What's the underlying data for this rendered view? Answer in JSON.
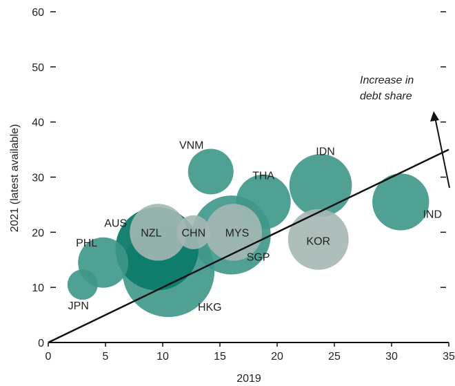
{
  "chart_data": {
    "type": "scatter",
    "title": "",
    "xlabel": "2019",
    "ylabel": "2021 (latest available)",
    "xlim": [
      0,
      35
    ],
    "ylim": [
      0,
      60
    ],
    "xticks": [
      0,
      5,
      10,
      15,
      20,
      25,
      30,
      35
    ],
    "yticks": [
      0,
      10,
      20,
      30,
      40,
      50,
      60
    ],
    "grid": false,
    "colors": {
      "dark": "#0d7a69",
      "medium": "#3e9688",
      "light": "#a4b7b4",
      "line": "#111111"
    },
    "points": [
      {
        "label": "HKG",
        "x": 10.5,
        "y": 13.0,
        "size": 37,
        "tone": "medium"
      },
      {
        "label": "SGP",
        "x": 16.0,
        "y": 19.5,
        "size": 27,
        "tone": "medium"
      },
      {
        "label": "AUS",
        "x": 9.5,
        "y": 17.0,
        "size": 30,
        "tone": "dark"
      },
      {
        "label": "PHL",
        "x": 4.8,
        "y": 14.5,
        "size": 11,
        "tone": "medium"
      },
      {
        "label": "JPN",
        "x": 3.0,
        "y": 10.5,
        "size": 4,
        "tone": "medium"
      },
      {
        "label": "VNM",
        "x": 14.2,
        "y": 31.0,
        "size": 9,
        "tone": "medium"
      },
      {
        "label": "THA",
        "x": 18.8,
        "y": 25.5,
        "size": 13,
        "tone": "medium"
      },
      {
        "label": "IDN",
        "x": 23.8,
        "y": 28.5,
        "size": 17,
        "tone": "medium"
      },
      {
        "label": "IND",
        "x": 30.8,
        "y": 25.5,
        "size": 14,
        "tone": "medium"
      },
      {
        "label": "NZL",
        "x": 9.6,
        "y": 20.0,
        "size": 14,
        "tone": "light"
      },
      {
        "label": "CHN",
        "x": 12.7,
        "y": 20.0,
        "size": 5,
        "tone": "light"
      },
      {
        "label": "MYS",
        "x": 16.2,
        "y": 20.0,
        "size": 14,
        "tone": "light"
      },
      {
        "label": "KOR",
        "x": 23.6,
        "y": 18.7,
        "size": 16,
        "tone": "light"
      }
    ],
    "reference_line": {
      "x": [
        0,
        35
      ],
      "y": [
        0,
        35
      ]
    },
    "annotation": {
      "line1": "Increase in",
      "line2": "debt share"
    }
  }
}
